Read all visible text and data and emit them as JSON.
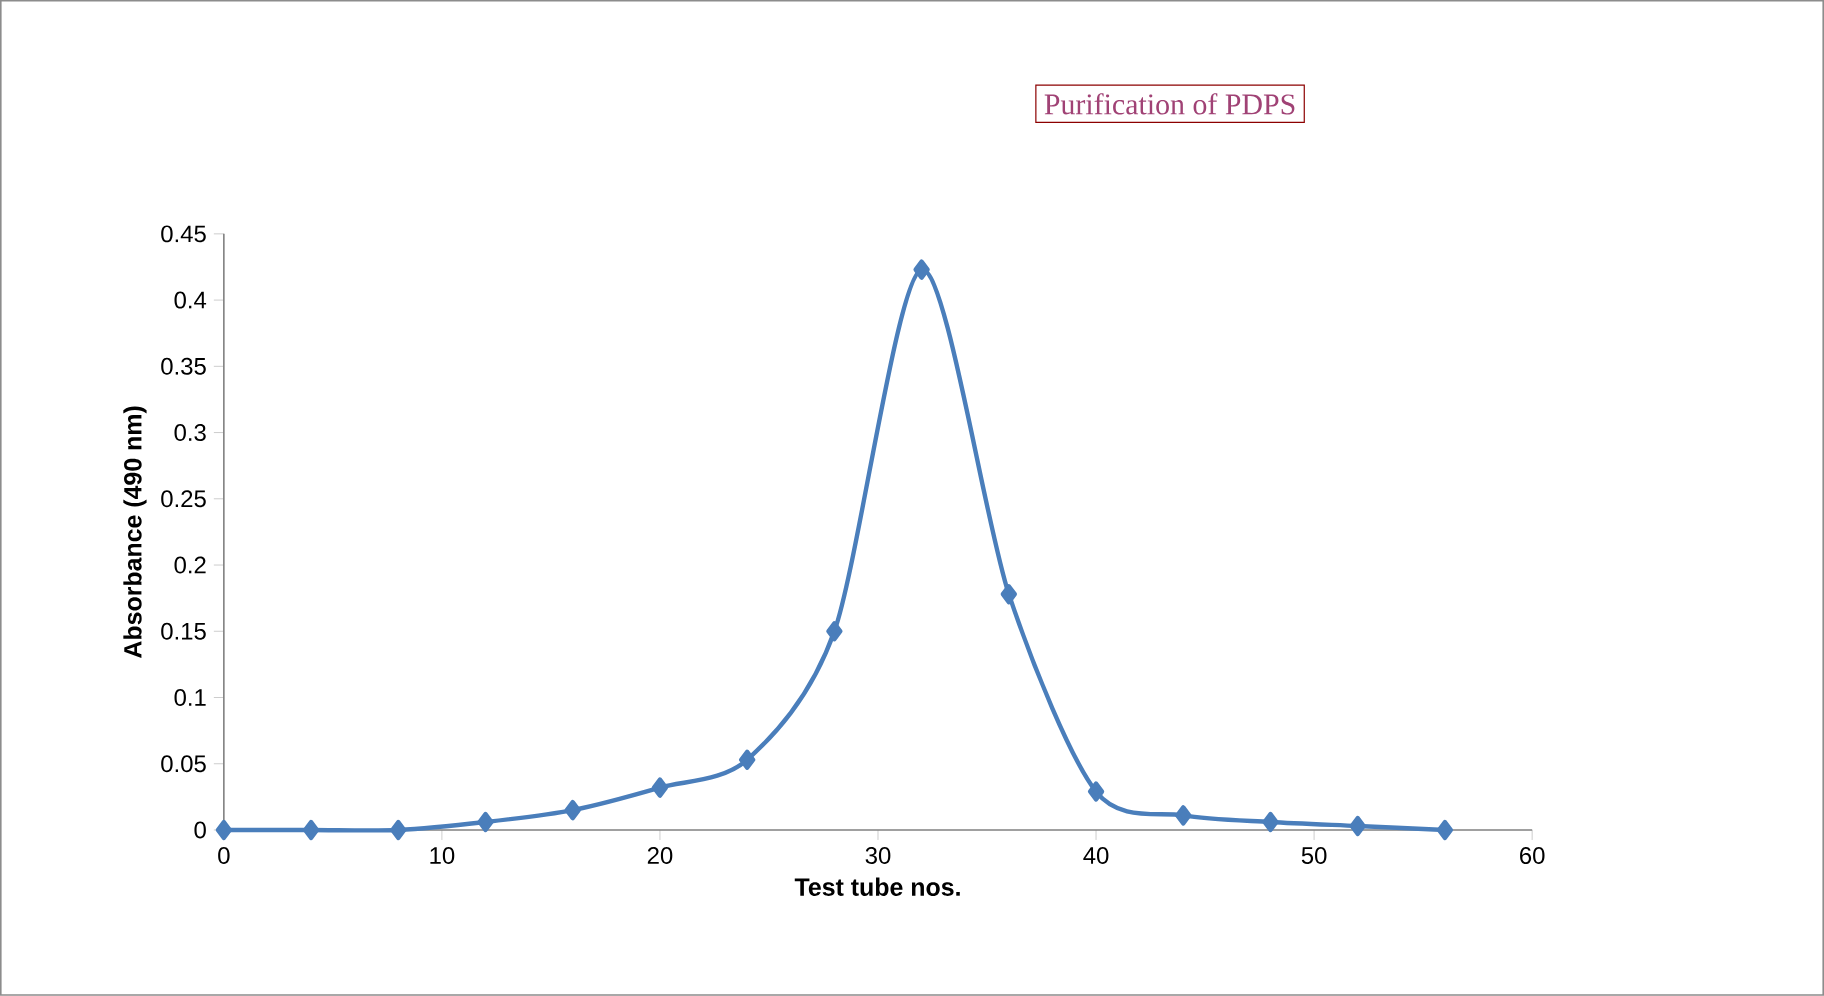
{
  "chart_data": {
    "type": "line",
    "title": "Purification of PDPS",
    "xlabel": "Test tube nos.",
    "ylabel": "Absorbance (490 nm)",
    "x": [
      0,
      4,
      8,
      12,
      16,
      20,
      24,
      28,
      32,
      36,
      40,
      44,
      48,
      52,
      56
    ],
    "series": [
      {
        "color": "#4a7ebb",
        "values": [
          0,
          0,
          0,
          0.006,
          0.015,
          0.032,
          0.053,
          0.15,
          0.423,
          0.178,
          0.029,
          0.011,
          0.006,
          0.003,
          0
        ]
      }
    ],
    "xlim": [
      0,
      60
    ],
    "ylim": [
      0,
      0.45
    ],
    "xticks": [
      0,
      10,
      20,
      30,
      40,
      50,
      60
    ],
    "yticks": [
      0,
      0.05,
      0.1,
      0.15,
      0.2,
      0.25,
      0.3,
      0.35,
      0.4,
      0.45
    ],
    "marker": "diamond",
    "line_style": "solid"
  }
}
